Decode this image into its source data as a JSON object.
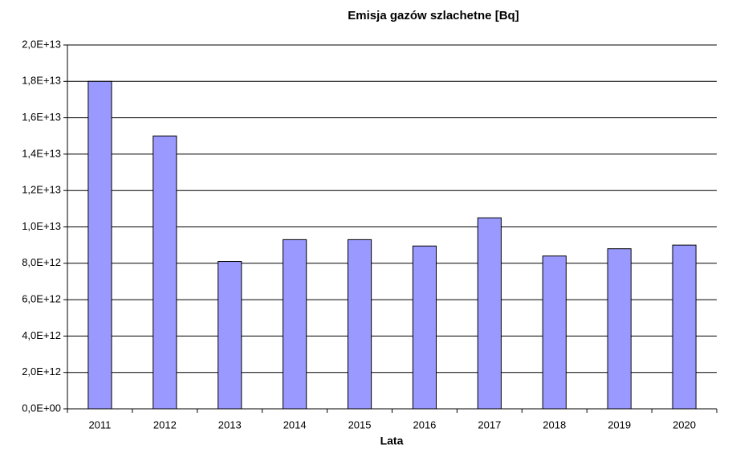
{
  "chart_data": {
    "type": "bar",
    "title": "Emisja gazów szlachetne [Bq]",
    "x_label": "Lata",
    "categories": [
      "2011",
      "2012",
      "2013",
      "2014",
      "2015",
      "2016",
      "2017",
      "2018",
      "2019",
      "2020"
    ],
    "values": [
      18000000000000,
      15000000000000,
      8100000000000,
      9300000000000,
      9300000000000,
      8950000000000,
      10500000000000,
      8400000000000,
      8800000000000,
      9000000000000
    ],
    "color": "#9999ff",
    "ylim": [
      0,
      20000000000000
    ],
    "yticks": [
      {
        "value": 0,
        "label": "0,0E+00"
      },
      {
        "value": 2000000000000,
        "label": "2,0E+12"
      },
      {
        "value": 4000000000000,
        "label": "4,0E+12"
      },
      {
        "value": 6000000000000,
        "label": "6,0E+12"
      },
      {
        "value": 8000000000000,
        "label": "8,0E+12"
      },
      {
        "value": 10000000000000,
        "label": "1,0E+13"
      },
      {
        "value": 12000000000000,
        "label": "1,2E+13"
      },
      {
        "value": 14000000000000,
        "label": "1,4E+13"
      },
      {
        "value": 16000000000000,
        "label": "1,6E+13"
      },
      {
        "value": 18000000000000,
        "label": "1,8E+13"
      },
      {
        "value": 20000000000000,
        "label": "2,0E+13"
      }
    ],
    "grid": true
  }
}
